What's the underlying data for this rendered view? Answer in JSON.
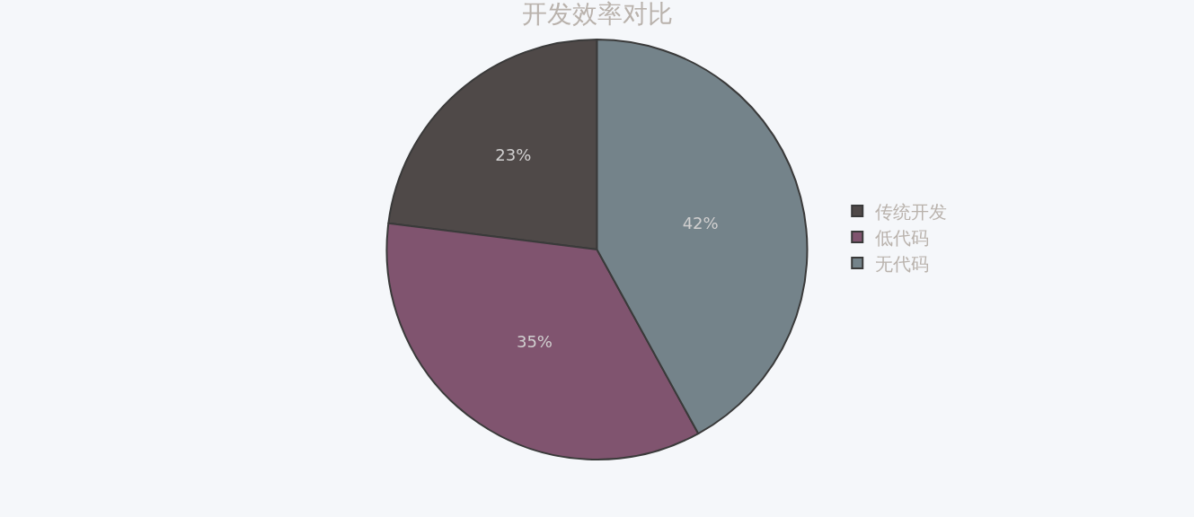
{
  "chart_data": {
    "type": "pie",
    "title": "开发效率对比",
    "categories": [
      "传统开发",
      "低代码",
      "无代码"
    ],
    "values": [
      23,
      35,
      42
    ],
    "value_labels": [
      "23%",
      "35%",
      "42%"
    ],
    "colors": [
      "#4f4948",
      "#80546f",
      "#74838a"
    ],
    "legend": "right"
  }
}
